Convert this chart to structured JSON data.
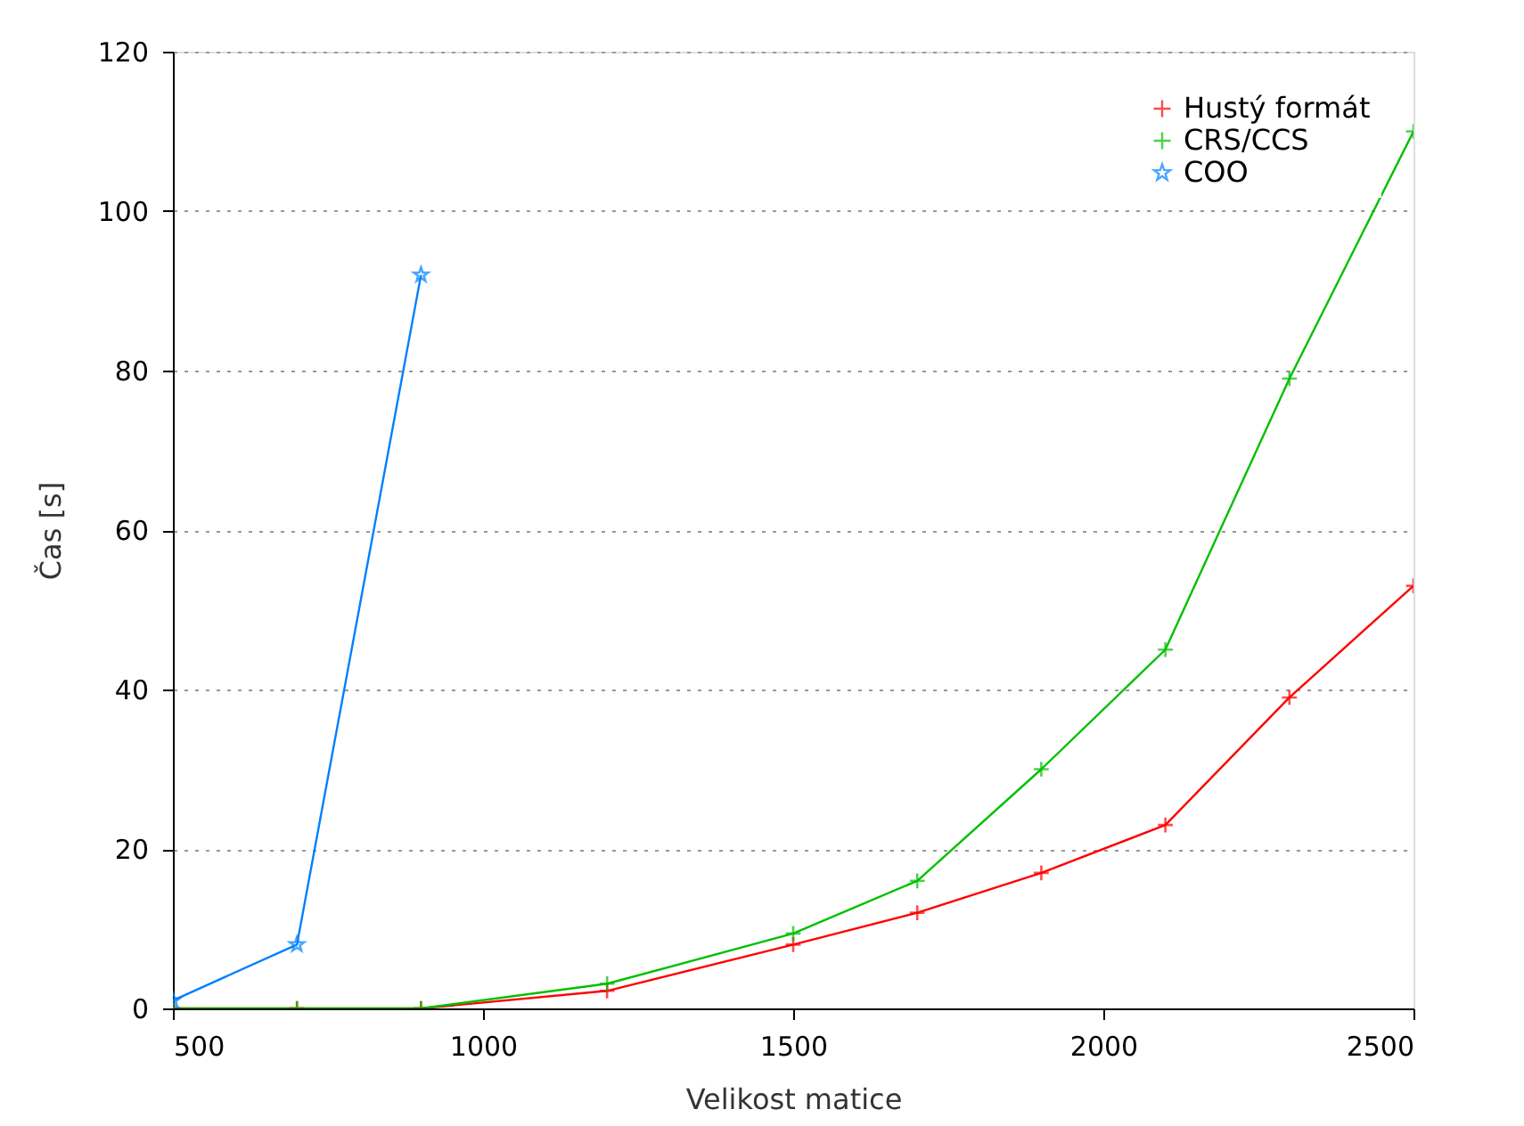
{
  "chart_data": {
    "type": "line",
    "xlabel": "Velikost matice",
    "ylabel": "Čas [s]",
    "xlim": [
      500,
      2500
    ],
    "xticks": [
      500,
      1000,
      1500,
      2000,
      2500
    ],
    "ylim": [
      0,
      120
    ],
    "yticks": [
      0,
      20,
      40,
      60,
      80,
      100,
      120
    ],
    "grid": "y",
    "legend": "top right",
    "line_style": "solid",
    "series": [
      {
        "name": "Hustý formát",
        "color": "#ff0000",
        "marker": "cross",
        "x": [
          500,
          700,
          900,
          1200,
          1500,
          1700,
          1900,
          2100,
          2300,
          2500
        ],
        "values": [
          0,
          0,
          0,
          2.2,
          8,
          12,
          17,
          23,
          39,
          53
        ]
      },
      {
        "name": "CRS/CCS",
        "color": "#00c000",
        "marker": "cross",
        "x": [
          500,
          700,
          900,
          1200,
          1500,
          1700,
          1900,
          2100,
          2300,
          2500
        ],
        "values": [
          0,
          0,
          0,
          3.1,
          9.4,
          16,
          30,
          45,
          79,
          110
        ]
      },
      {
        "name": "COO",
        "color": "#0080ff",
        "marker": "star",
        "x": [
          500,
          700,
          900
        ],
        "values": [
          1,
          8,
          92
        ]
      }
    ]
  }
}
